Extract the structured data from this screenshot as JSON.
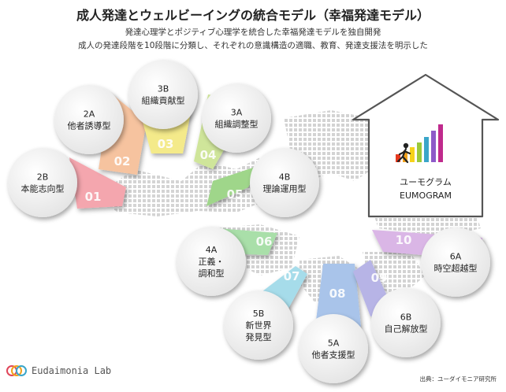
{
  "title": "成人発達とウェルビーイングの統合モデル（幸福発達モデル）",
  "subtitle_lines": [
    "発達心理学とポジティブ心理学を統合した幸福発達モデルを独自開発",
    "成人の発達段階を10段階に分類し、それぞれの意識構造の適職、教育、発達支援法を明示した"
  ],
  "stages": [
    {
      "num": "01",
      "code": "2B",
      "name": [
        "本能志向型"
      ],
      "color": "#f4a6ae"
    },
    {
      "num": "02",
      "code": "2A",
      "name": [
        "他者誘導型"
      ],
      "color": "#f6c39f"
    },
    {
      "num": "03",
      "code": "3B",
      "name": [
        "組織貢献型"
      ],
      "color": "#f4ea8a"
    },
    {
      "num": "04",
      "code": "3A",
      "name": [
        "組織調整型"
      ],
      "color": "#cfe59a"
    },
    {
      "num": "05",
      "code": "4B",
      "name": [
        "理論運用型"
      ],
      "color": "#9fd68a"
    },
    {
      "num": "06",
      "code": "4A",
      "name": [
        "正義・",
        "調和型"
      ],
      "color": "#a9dfa9"
    },
    {
      "num": "07",
      "code": "5B",
      "name": [
        "新世界",
        "発見型"
      ],
      "color": "#a6dcea"
    },
    {
      "num": "08",
      "code": "5A",
      "name": [
        "他者支援型"
      ],
      "color": "#a9c4ea"
    },
    {
      "num": "09",
      "code": "6B",
      "name": [
        "自己解放型"
      ],
      "color": "#b7b4e6"
    },
    {
      "num": "10",
      "code": "6A",
      "name": [
        "時空超越型"
      ],
      "color": "#dab6e6"
    }
  ],
  "house": {
    "label_jp": "ユーモグラム",
    "label_en": "EUMOGRAM",
    "bar_colors": [
      "#e5391f",
      "#f2a21b",
      "#f6d21a",
      "#9bc93b",
      "#3aa6c9",
      "#8e5ac8",
      "#c02a8d"
    ]
  },
  "logo": {
    "text": "Eudaimonia Lab",
    "colors": [
      "#e0465a",
      "#f2a21b",
      "#3aa6c9"
    ]
  },
  "source": "出典：ユーダイモニア研究所"
}
